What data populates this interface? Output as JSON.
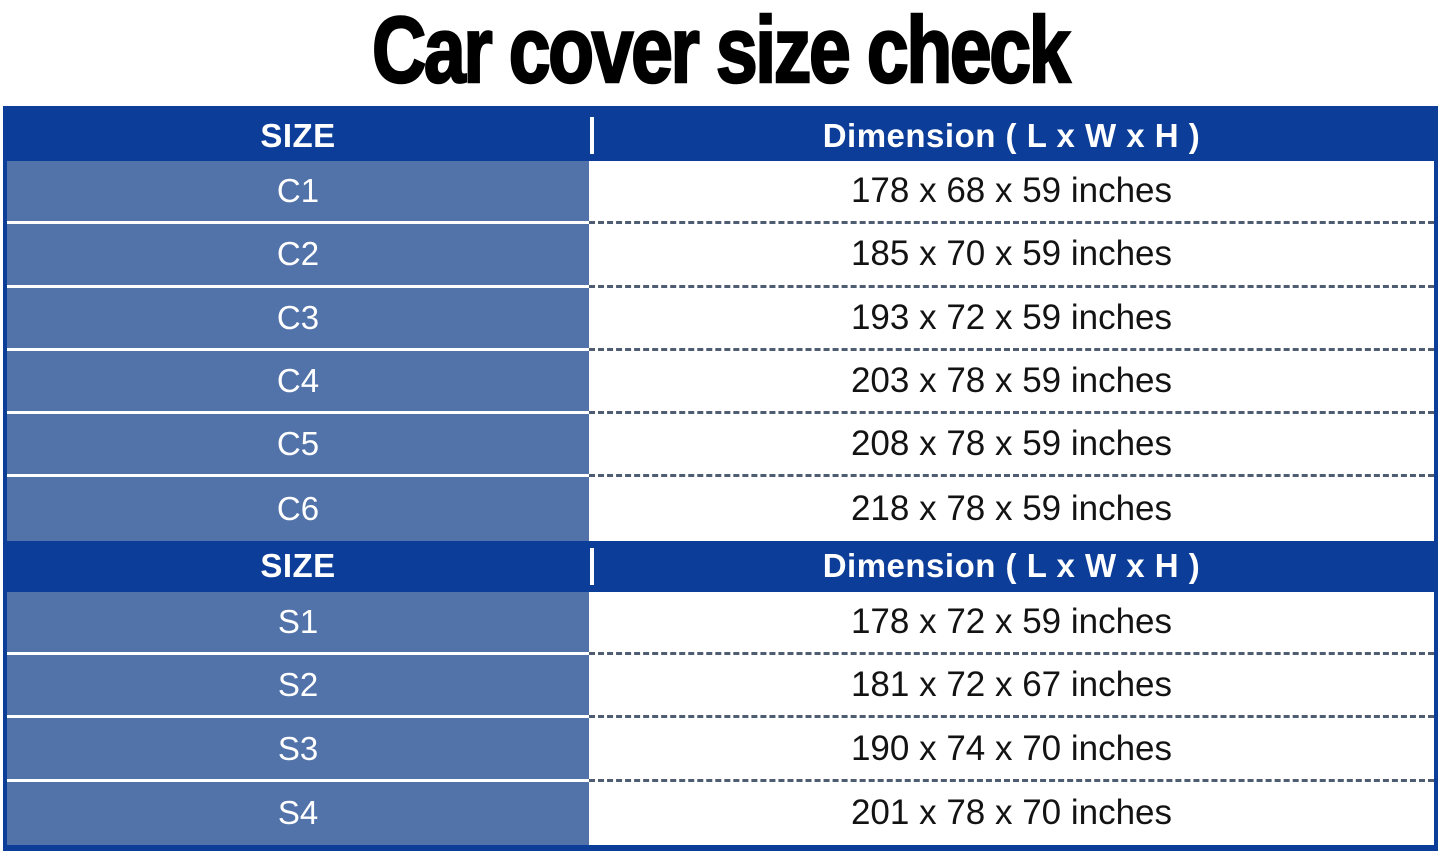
{
  "title": "Car cover size check",
  "sections": [
    {
      "header": {
        "size": "SIZE",
        "dimension": "Dimension ( L x W x H )"
      },
      "rows": [
        {
          "size": "C1",
          "dimension": "178 x 68 x 59 inches"
        },
        {
          "size": "C2",
          "dimension": "185 x 70 x 59 inches"
        },
        {
          "size": "C3",
          "dimension": "193 x 72 x 59 inches"
        },
        {
          "size": "C4",
          "dimension": "203 x 78 x 59 inches"
        },
        {
          "size": "C5",
          "dimension": "208 x 78 x 59 inches"
        },
        {
          "size": "C6",
          "dimension": "218 x 78 x 59 inches"
        }
      ]
    },
    {
      "header": {
        "size": "SIZE",
        "dimension": "Dimension ( L x W x H )"
      },
      "rows": [
        {
          "size": "S1",
          "dimension": "178 x 72 x 59 inches"
        },
        {
          "size": "S2",
          "dimension": "181 x 72 x 67 inches"
        },
        {
          "size": "S3",
          "dimension": "190 x 74 x 70 inches"
        },
        {
          "size": "S4",
          "dimension": "201 x 78 x 70 inches"
        }
      ]
    }
  ],
  "colors": {
    "header_background": "#0c3e99",
    "row_background": "#5273a9",
    "dashed_divider": "#4f5d72",
    "header_text": "#ffffff",
    "size_label_text": "#ffffff",
    "dimension_text": "#131313",
    "title_text": "#000000"
  },
  "chart_data": {
    "type": "table",
    "title": "Car cover size check",
    "tables": [
      {
        "columns": [
          "SIZE",
          "Dimension ( L x W x H )"
        ],
        "rows": [
          [
            "C1",
            "178 x 68 x 59 inches"
          ],
          [
            "C2",
            "185 x 70 x 59 inches"
          ],
          [
            "C3",
            "193 x 72 x 59 inches"
          ],
          [
            "C4",
            "203 x 78 x 59 inches"
          ],
          [
            "C5",
            "208 x 78 x 59 inches"
          ],
          [
            "C6",
            "218 x 78 x 59 inches"
          ]
        ]
      },
      {
        "columns": [
          "SIZE",
          "Dimension ( L x W x H )"
        ],
        "rows": [
          [
            "S1",
            "178 x 72 x 59 inches"
          ],
          [
            "S2",
            "181 x 72 x 67 inches"
          ],
          [
            "S3",
            "190 x 74 x 70 inches"
          ],
          [
            "S4",
            "201 x 78 x 70 inches"
          ]
        ]
      }
    ]
  }
}
